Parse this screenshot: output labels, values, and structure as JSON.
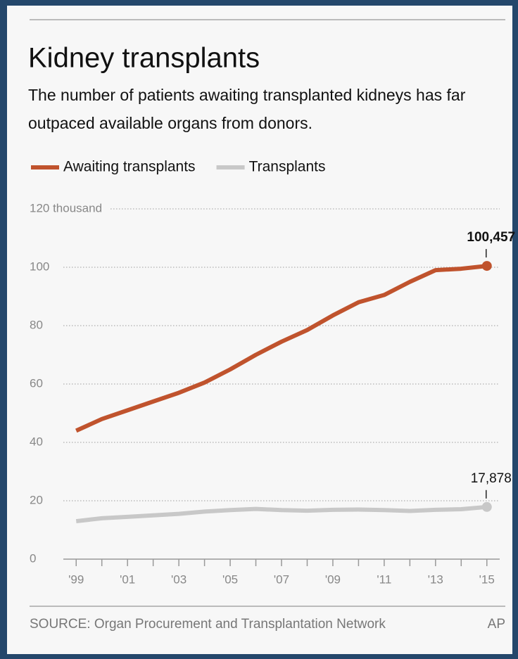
{
  "chart_data": {
    "type": "line",
    "title": "Kidney transplants",
    "subtitle": [
      "The number of patients awaiting transplanted kidneys has far",
      "outpaced available organs from donors."
    ],
    "x": [
      1999,
      2000,
      2001,
      2002,
      2003,
      2004,
      2005,
      2006,
      2007,
      2008,
      2009,
      2010,
      2011,
      2012,
      2013,
      2014,
      2015
    ],
    "series": [
      {
        "name": "Awaiting transplants",
        "color": "#c0532d",
        "values": [
          44,
          48,
          51,
          54,
          57,
          60.5,
          65,
          70,
          74.5,
          78.5,
          83.5,
          88,
          90.5,
          95,
          99,
          99.5,
          100.457
        ],
        "value_labels": [
          null,
          null,
          null,
          null,
          null,
          null,
          null,
          null,
          null,
          null,
          null,
          null,
          null,
          null,
          null,
          null,
          "100,457"
        ]
      },
      {
        "name": "Transplants",
        "color": "#c8c8c8",
        "values": [
          13,
          14,
          14.5,
          15,
          15.5,
          16.3,
          16.8,
          17.2,
          16.8,
          16.6,
          16.9,
          17,
          16.8,
          16.5,
          16.9,
          17.1,
          17.878
        ],
        "value_labels": [
          null,
          null,
          null,
          null,
          null,
          null,
          null,
          null,
          null,
          null,
          null,
          null,
          null,
          null,
          null,
          null,
          "17,878"
        ]
      }
    ],
    "xlim": [
      1998.5,
      2015.5
    ],
    "xticks": [
      {
        "value": 1999,
        "label": "'99"
      },
      {
        "value": 2001,
        "label": "'01"
      },
      {
        "value": 2003,
        "label": "'03"
      },
      {
        "value": 2005,
        "label": "'05"
      },
      {
        "value": 2007,
        "label": "'07"
      },
      {
        "value": 2009,
        "label": "'09"
      },
      {
        "value": 2011,
        "label": "'11"
      },
      {
        "value": 2013,
        "label": "'13"
      },
      {
        "value": 2015,
        "label": "'15"
      }
    ],
    "xminorticks": [
      2000,
      2002,
      2004,
      2006,
      2008,
      2010,
      2012,
      2014
    ],
    "ylim": [
      0,
      120
    ],
    "yticks": [
      0,
      20,
      40,
      60,
      80,
      100,
      {
        "value": 120,
        "label": "120 thousand"
      }
    ],
    "grid": true,
    "source": "SOURCE: Organ Procurement and Transplantation Network",
    "credit": "AP"
  }
}
